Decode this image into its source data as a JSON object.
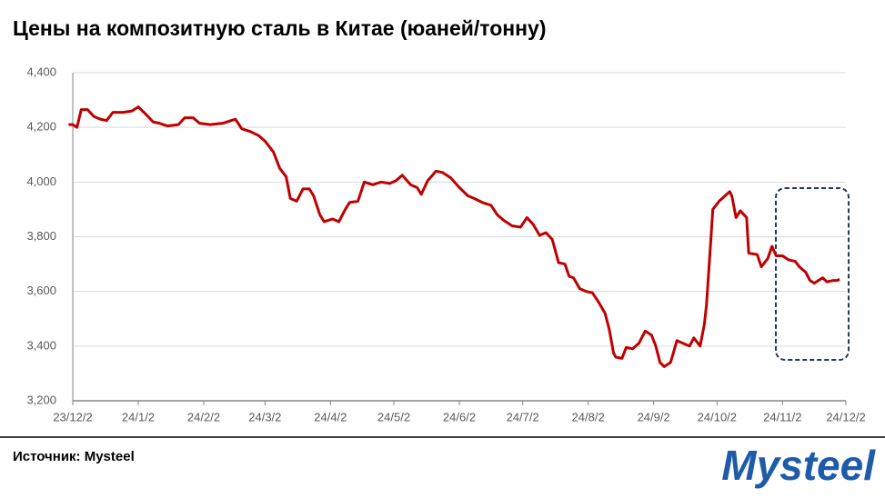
{
  "chart_data": {
    "type": "line",
    "title": "Цены на композитную сталь в Китае (юаней/тонну)",
    "source": "Источник: Mysteel",
    "logo": "Mysteel",
    "x": [
      "23/11/30",
      "23/12/2",
      "23/12/4",
      "23/12/6",
      "23/12/9",
      "23/12/12",
      "23/12/15",
      "23/12/18",
      "23/12/21",
      "23/12/26",
      "23/12/30",
      "24/1/2",
      "24/1/6",
      "24/1/9",
      "24/1/12",
      "24/1/16",
      "24/1/21",
      "24/1/24",
      "24/1/28",
      "24/1/31",
      "24/2/5",
      "24/2/11",
      "24/2/17",
      "24/2/20",
      "24/2/24",
      "24/2/28",
      "24/3/2",
      "24/3/6",
      "24/3/9",
      "24/3/12",
      "24/3/14",
      "24/3/17",
      "24/3/20",
      "24/3/23",
      "24/3/25",
      "24/3/28",
      "24/3/30",
      "24/4/3",
      "24/4/6",
      "24/4/9",
      "24/4/11",
      "24/4/15",
      "24/4/18",
      "24/4/22",
      "24/4/26",
      "24/4/30",
      "24/5/3",
      "24/5/6",
      "24/5/10",
      "24/5/13",
      "24/5/15",
      "24/5/18",
      "24/5/22",
      "24/5/25",
      "24/5/29",
      "24/6/2",
      "24/6/6",
      "24/6/9",
      "24/6/13",
      "24/6/17",
      "24/6/20",
      "24/6/23",
      "24/6/27",
      "24/7/1",
      "24/7/4",
      "24/7/7",
      "24/7/10",
      "24/7/13",
      "24/7/16",
      "24/7/19",
      "24/7/22",
      "24/7/24",
      "24/7/26",
      "24/7/29",
      "24/8/1",
      "24/8/4",
      "24/8/7",
      "24/8/10",
      "24/8/12",
      "24/8/14",
      "24/8/15",
      "24/8/18",
      "24/8/20",
      "24/8/23",
      "24/8/26",
      "24/8/29",
      "24/9/1",
      "24/9/3",
      "24/9/5",
      "24/9/7",
      "24/9/10",
      "24/9/13",
      "24/9/16",
      "24/9/19",
      "24/9/21",
      "24/9/24",
      "24/9/26",
      "24/9/27",
      "24/9/29",
      "24/9/30",
      "24/10/3",
      "24/10/8",
      "24/10/9",
      "24/10/11",
      "24/10/13",
      "24/10/16",
      "24/10/17",
      "24/10/21",
      "24/10/23",
      "24/10/26",
      "24/10/28",
      "24/10/30",
      "24/11/2",
      "24/11/5",
      "24/11/8",
      "24/11/10",
      "24/11/13",
      "24/11/15",
      "24/11/17",
      "24/11/19",
      "24/11/21",
      "24/11/23",
      "24/11/26",
      "24/11/28",
      "24/11/29"
    ],
    "series": [
      {
        "name": "Цены",
        "color": "#c00000",
        "values": [
          4210,
          4210,
          4200,
          4265,
          4265,
          4240,
          4230,
          4225,
          4255,
          4255,
          4260,
          4275,
          4245,
          4220,
          4215,
          4205,
          4210,
          4235,
          4235,
          4215,
          4210,
          4215,
          4230,
          4195,
          4185,
          4170,
          4150,
          4110,
          4050,
          4020,
          3940,
          3930,
          3975,
          3975,
          3950,
          3880,
          3855,
          3865,
          3855,
          3900,
          3925,
          3930,
          4000,
          3990,
          4000,
          3995,
          4005,
          4025,
          3990,
          3980,
          3955,
          4005,
          4040,
          4035,
          4015,
          3980,
          3950,
          3940,
          3925,
          3915,
          3880,
          3860,
          3840,
          3835,
          3870,
          3845,
          3805,
          3815,
          3790,
          3705,
          3700,
          3655,
          3650,
          3610,
          3600,
          3595,
          3560,
          3520,
          3460,
          3375,
          3360,
          3355,
          3395,
          3390,
          3410,
          3455,
          3440,
          3400,
          3340,
          3325,
          3340,
          3420,
          3410,
          3400,
          3430,
          3400,
          3480,
          3550,
          3780,
          3900,
          3930,
          3965,
          3950,
          3870,
          3895,
          3870,
          3740,
          3735,
          3690,
          3720,
          3765,
          3730,
          3730,
          3715,
          3710,
          3690,
          3670,
          3640,
          3630,
          3640,
          3650,
          3635,
          3640,
          3640,
          3645
        ]
      }
    ],
    "xlim": [
      "23/12/2",
      "24/12/2"
    ],
    "xticks": [
      "23/12/2",
      "24/1/2",
      "24/2/2",
      "24/3/2",
      "24/4/2",
      "24/5/2",
      "24/6/2",
      "24/7/2",
      "24/8/2",
      "24/9/2",
      "24/10/2",
      "24/11/2",
      "24/12/2"
    ],
    "ylim": [
      3200,
      4400
    ],
    "yticks": [
      {
        "value": 3200,
        "label": "3,200"
      },
      {
        "value": 3400,
        "label": "3,400"
      },
      {
        "value": 3600,
        "label": "3,600"
      },
      {
        "value": 3800,
        "label": "3,800"
      },
      {
        "value": 4000,
        "label": "4,000"
      },
      {
        "value": 4200,
        "label": "4,200"
      },
      {
        "value": 4400,
        "label": "4,400"
      }
    ],
    "grid": true
  }
}
